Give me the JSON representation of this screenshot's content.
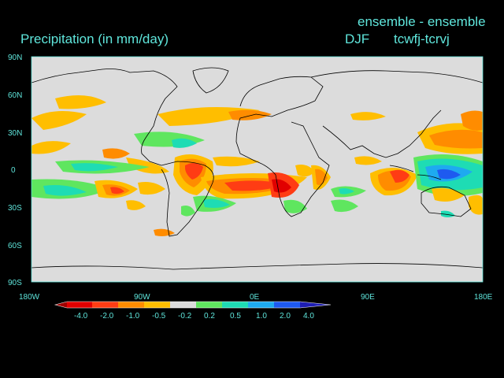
{
  "header": {
    "title": "Precipitation (in mm/day)",
    "ensemble_label": "ensemble - ensemble",
    "season": "DJF",
    "experiment": "tcwfj-tcrvj"
  },
  "map": {
    "lat_labels": [
      "90N",
      "60N",
      "30N",
      "0",
      "30S",
      "60S",
      "90S"
    ],
    "lon_labels": [
      "180W",
      "90W",
      "0E",
      "90E",
      "180E"
    ],
    "colors": {
      "background": "#000000",
      "land_ocean": "#dcdcdc",
      "coastline": "#000000",
      "label": "#5fe6dc"
    }
  },
  "colorbar": {
    "labels": [
      "-4.0",
      "-2.0",
      "-1.0",
      "-0.5",
      "-0.2",
      "0.2",
      "0.5",
      "1.0",
      "2.0",
      "4.0"
    ],
    "colors": [
      "#a00000",
      "#e10000",
      "#ff3c14",
      "#ff8c00",
      "#ffbe00",
      "#dcdcdc",
      "#5fe65f",
      "#1edcb4",
      "#1eaaf0",
      "#1e5af0",
      "#1e1eb4"
    ]
  }
}
